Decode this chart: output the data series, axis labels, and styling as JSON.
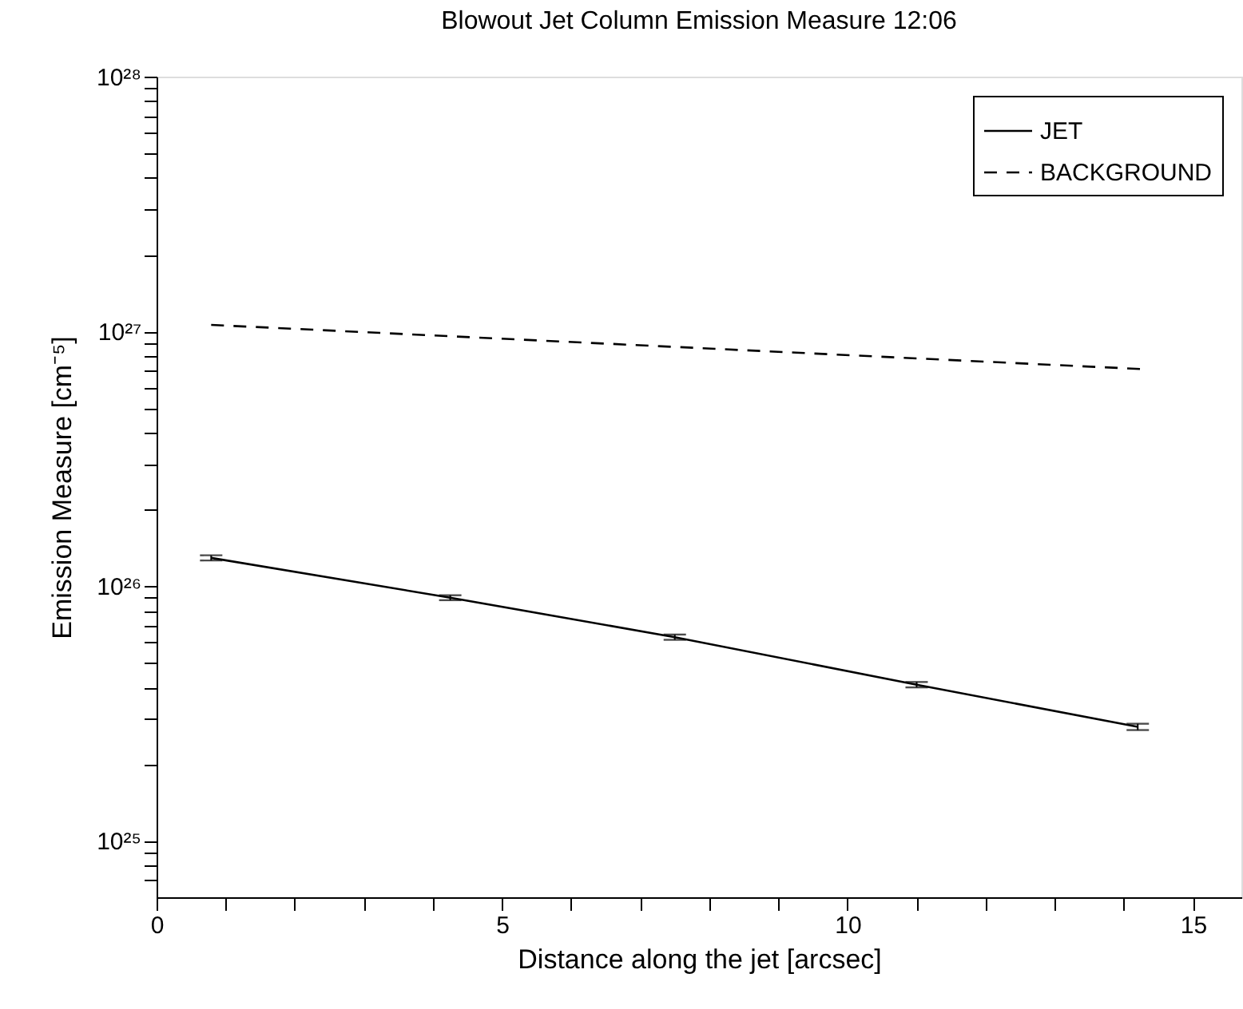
{
  "chart_data": {
    "type": "line",
    "title": "Blowout Jet Column Emission Measure  12:06",
    "xlabel": "Distance along the jet [arcsec]",
    "ylabel": "Emission Measure [cm⁻⁵]",
    "series": [
      {
        "name": "JET",
        "color": "#000000",
        "line_style": "solid",
        "x": [
          0.79,
          4.25,
          7.5,
          11.0,
          14.2
        ],
        "values": [
          1.29e+26,
          9e+25,
          6.3e+25,
          4.1e+25,
          2.8e+25
        ],
        "errors": [
          3e+24,
          2e+24,
          1.5e+24,
          1e+24,
          8e+23
        ]
      },
      {
        "name": "BACKGROUND",
        "color": "#000000",
        "line_style": "dashed",
        "x": [
          0.79,
          14.3
        ],
        "values": [
          1.06e+27,
          7.1e+26
        ]
      }
    ],
    "log": "y",
    "xlim": [
      0,
      15.7
    ],
    "ylim": [
      6e+24,
      1e+28
    ],
    "xticks": [
      0,
      {
        "value": 1,
        "label": null
      },
      {
        "value": 2,
        "label": null
      },
      {
        "value": 3,
        "label": null
      },
      {
        "value": 4,
        "label": null
      },
      5,
      {
        "value": 6,
        "label": null
      },
      {
        "value": 7,
        "label": null
      },
      {
        "value": 8,
        "label": null
      },
      {
        "value": 9,
        "label": null
      },
      10,
      {
        "value": 11,
        "label": null
      },
      {
        "value": 12,
        "label": null
      },
      {
        "value": 13,
        "label": null
      },
      {
        "value": 14,
        "label": null
      },
      15
    ],
    "yticks": [
      {
        "value": 7e+24,
        "label": null
      },
      {
        "value": 8e+24,
        "label": null
      },
      {
        "value": 9e+24,
        "label": null
      },
      {
        "value": 1e+25,
        "label": "10²⁵"
      },
      {
        "value": 2e+25,
        "label": null
      },
      {
        "value": 3e+25,
        "label": null
      },
      {
        "value": 4e+25,
        "label": null
      },
      {
        "value": 5e+25,
        "label": null
      },
      {
        "value": 6e+25,
        "label": null
      },
      {
        "value": 7e+25,
        "label": null
      },
      {
        "value": 8e+25,
        "label": null
      },
      {
        "value": 9e+25,
        "label": null
      },
      {
        "value": 1e+26,
        "label": "10²⁶"
      },
      {
        "value": 2e+26,
        "label": null
      },
      {
        "value": 3e+26,
        "label": null
      },
      {
        "value": 4e+26,
        "label": null
      },
      {
        "value": 5e+26,
        "label": null
      },
      {
        "value": 6e+26,
        "label": null
      },
      {
        "value": 7e+26,
        "label": null
      },
      {
        "value": 8e+26,
        "label": null
      },
      {
        "value": 9e+26,
        "label": null
      },
      {
        "value": 1e+27,
        "label": "10²⁷"
      },
      {
        "value": 2e+27,
        "label": null
      },
      {
        "value": 3e+27,
        "label": null
      },
      {
        "value": 4e+27,
        "label": null
      },
      {
        "value": 5e+27,
        "label": null
      },
      {
        "value": 6e+27,
        "label": null
      },
      {
        "value": 7e+27,
        "label": null
      },
      {
        "value": 8e+27,
        "label": null
      },
      {
        "value": 9e+27,
        "label": null
      },
      {
        "value": 1e+28,
        "label": "10²⁸"
      }
    ],
    "grid": false,
    "legend": "top right",
    "marker": "none"
  }
}
